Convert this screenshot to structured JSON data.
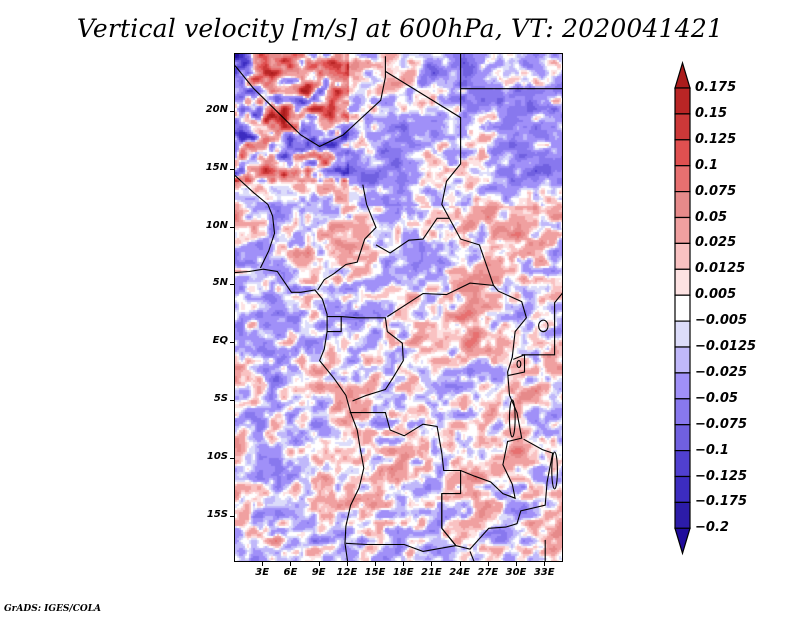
{
  "title": "Vertical velocity [m/s] at 600hPa, VT: 2020041421",
  "credit": "GrADS: IGES/COLA",
  "map": {
    "variable": "Vertical velocity",
    "units": "m/s",
    "level": "600hPa",
    "valid_time": "2020041421",
    "lat_range": [
      -19,
      25
    ],
    "lon_range": [
      0,
      35
    ],
    "y_ticks": [
      "20N",
      "15N",
      "10N",
      "5N",
      "EQ",
      "5S",
      "10S",
      "15S"
    ],
    "y_tick_values": [
      20,
      15,
      10,
      5,
      0,
      -5,
      -10,
      -15
    ],
    "x_ticks": [
      "3E",
      "6E",
      "9E",
      "12E",
      "15E",
      "18E",
      "21E",
      "24E",
      "27E",
      "30E",
      "33E"
    ],
    "x_tick_values": [
      3,
      6,
      9,
      12,
      15,
      18,
      21,
      24,
      27,
      30,
      33
    ]
  },
  "colorbar": {
    "labels": [
      "0.175",
      "0.15",
      "0.125",
      "0.1",
      "0.075",
      "0.05",
      "0.025",
      "0.0125",
      "0.005",
      "−0.005",
      "−0.0125",
      "−0.025",
      "−0.05",
      "−0.075",
      "−0.1",
      "−0.125",
      "−0.175",
      "−0.2"
    ],
    "colors": [
      "#aa1c1c",
      "#b92525",
      "#cc3838",
      "#e05050",
      "#e77070",
      "#e68a8a",
      "#f0a0a0",
      "#f9c2c2",
      "#fde2e2",
      "#ffffff",
      "#dcdcfa",
      "#c0b8fa",
      "#a090f8",
      "#8878ee",
      "#7060e0",
      "#5040d0",
      "#3c2cc0",
      "#2c1ca8",
      "#200c9c"
    ]
  }
}
